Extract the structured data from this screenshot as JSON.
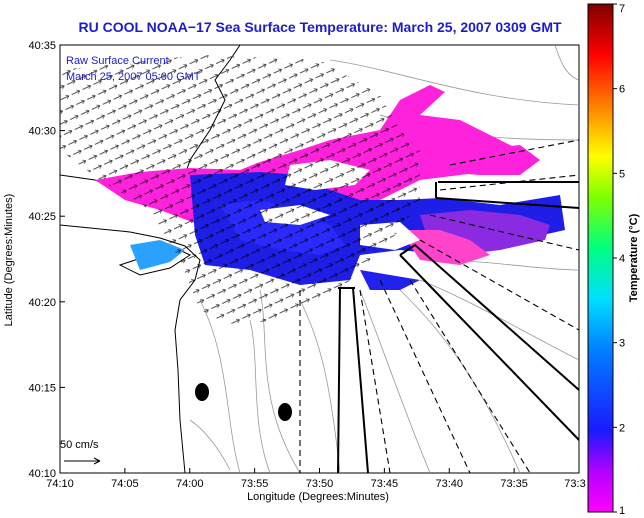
{
  "chart_data": {
    "type": "heatmap",
    "title": "RU COOL  NOAA−17  Sea Surface Temperature:  March 25, 2007 0309 GMT",
    "xlabel": "Longitude (Degrees:Minutes)",
    "ylabel": "Latitude (Degrees:Minutes)",
    "x_ticks": [
      "74:10",
      "74:05",
      "74:00",
      "73:55",
      "73:50",
      "73:45",
      "73:40",
      "73:35",
      "73:3"
    ],
    "y_ticks": [
      "40:10",
      "40:15",
      "40:20",
      "40:25",
      "40:30",
      "40:35"
    ],
    "xlim_minutes_west": [
      10,
      30
    ],
    "ylim_minutes_north": [
      10,
      35
    ],
    "annotations": {
      "raw_label": "Raw Surface Current",
      "raw_date": "March 25, 2007 05:00 GMT",
      "scale_label": "50 cm/s"
    },
    "colorbar": {
      "label": "Temperature (°C)",
      "ticks": [
        "1",
        "2",
        "3",
        "4",
        "5",
        "6",
        "7"
      ],
      "range": [
        1,
        7
      ]
    },
    "colors": {
      "title": "#1c1ccc",
      "land_outline": "#000000",
      "bathymetry": "#999999"
    }
  }
}
